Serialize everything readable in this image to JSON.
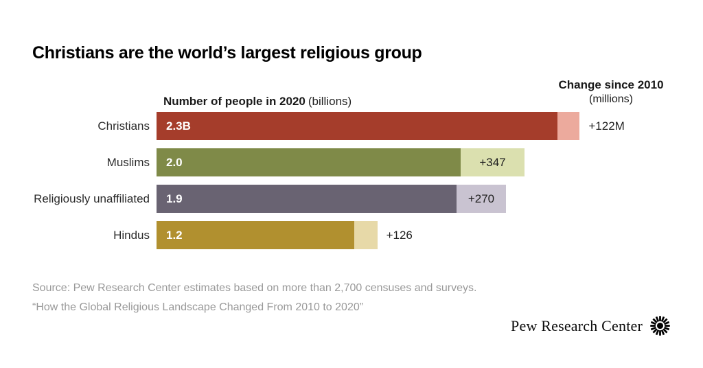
{
  "title": "Christians are the world’s largest religious group",
  "columns": {
    "left_bold": "Number of people in 2020",
    "left_note": "(billions)",
    "right_bold": "Change since 2010",
    "right_note": "(millions)"
  },
  "chart_data": {
    "type": "bar",
    "orientation": "horizontal",
    "title": "Christians are the world’s largest religious group",
    "value_axis_label": "Number of people in 2020 (billions)",
    "change_axis_label": "Change since 2010 (millions)",
    "grid": false,
    "legend": false,
    "rows": [
      {
        "label": "Christians",
        "value_2020_billions": 2.3,
        "value_label": "2.3B",
        "change_since_2010_millions": 122,
        "change_label": "+122M",
        "bar_color": "#a53d2b",
        "change_color": "#ecaa9d",
        "change_label_position": "outside"
      },
      {
        "label": "Muslims",
        "value_2020_billions": 2.0,
        "value_label": "2.0",
        "change_since_2010_millions": 347,
        "change_label": "+347",
        "bar_color": "#7f8a48",
        "change_color": "#dbe0af",
        "change_label_position": "inside"
      },
      {
        "label": "Religiously unaffiliated",
        "value_2020_billions": 1.9,
        "value_label": "1.9",
        "change_since_2010_millions": 270,
        "change_label": "+270",
        "bar_color": "#696372",
        "change_color": "#c9c3d1",
        "change_label_position": "inside"
      },
      {
        "label": "Hindus",
        "value_2020_billions": 1.2,
        "value_label": "1.2",
        "change_since_2010_millions": 126,
        "change_label": "+126",
        "bar_color": "#b1902f",
        "change_color": "#e7d9a8",
        "change_label_position": "outside"
      }
    ],
    "bar_encoding": "dark segment = 2010 population, light segment = growth 2010 to 2020, total length = 2020 population"
  },
  "footer": {
    "line1": "Source: Pew Research Center estimates based on more than 2,700 censuses and surveys.",
    "line2": "“How the Global Religious Landscape Changed From 2010 to 2020”"
  },
  "branding": {
    "wordmark": "Pew Research Center"
  }
}
